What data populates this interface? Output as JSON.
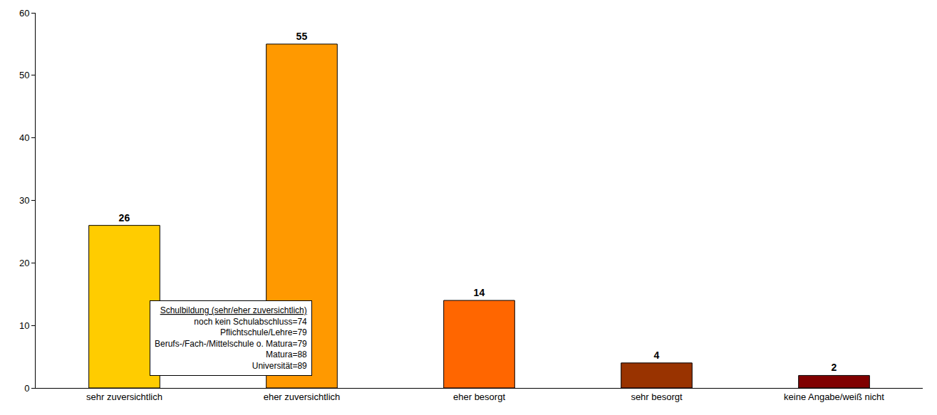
{
  "chart_data": {
    "type": "bar",
    "categories": [
      "sehr zuversichtlich",
      "eher zuversichtlich",
      "eher besorgt",
      "sehr besorgt",
      "keine Angabe/weiß nicht"
    ],
    "values": [
      26,
      55,
      14,
      4,
      2
    ],
    "colors": [
      "#ffcc00",
      "#ff9900",
      "#ff6600",
      "#993300",
      "#800000"
    ],
    "ylim": [
      0,
      60
    ],
    "yticks": [
      0,
      10,
      20,
      30,
      40,
      50,
      60
    ],
    "grid": false,
    "data_labels": true,
    "annotations": [
      {
        "title": "Schulbildung (sehr/eher zuversichtlich)",
        "lines": [
          "noch kein Schulabschluss=74",
          "Pflichtschule/Lehre=79",
          "Berufs-/Fach-/Mittelschule o. Matura=79",
          "Matura=88",
          "Universität=89"
        ]
      }
    ]
  }
}
